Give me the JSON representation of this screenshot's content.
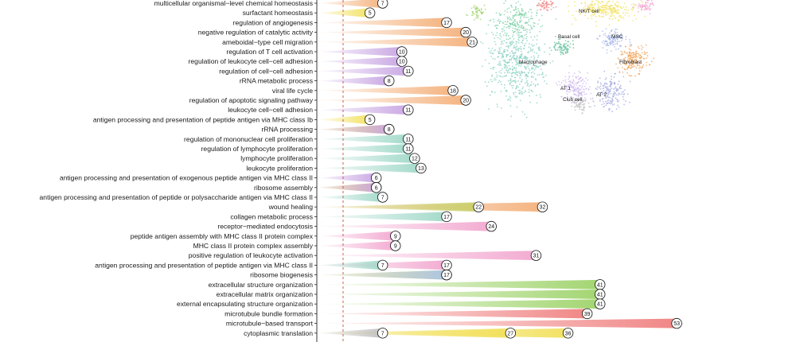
{
  "chart_data": {
    "type": "lollipop",
    "grid": false,
    "colors": {
      "red": "#f08080",
      "green": "#9ed36a",
      "pink": "#f2a7cf",
      "yellow": "#f2e05c",
      "teal": "#9fd8c8",
      "purple": "#c7a4e2",
      "orange": "#f4b07a",
      "blue": "#a9c4ec",
      "olive": "#c8cf6a",
      "gray": "#bfbfbf"
    },
    "rows": [
      {
        "term": "multicellular organismal−level chemical homeostasis",
        "points": [
          {
            "v": 7,
            "c": "orange"
          }
        ]
      },
      {
        "term": "surfactant homeostasis",
        "points": [
          {
            "v": 5,
            "c": "yellow"
          }
        ]
      },
      {
        "term": "regulation of angiogenesis",
        "points": [
          {
            "v": 17,
            "c": "orange"
          }
        ]
      },
      {
        "term": "negative regulation of catalytic activity",
        "points": [
          {
            "v": 20,
            "c": "orange"
          }
        ]
      },
      {
        "term": "ameboidal−type cell migration",
        "points": [
          {
            "v": 21,
            "c": "orange"
          }
        ]
      },
      {
        "term": "regulation of T cell activation",
        "points": [
          {
            "v": 10,
            "c": "purple"
          }
        ]
      },
      {
        "term": "regulation of leukocyte cell−cell adhesion",
        "points": [
          {
            "v": 10,
            "c": "purple"
          }
        ]
      },
      {
        "term": "regulation of cell−cell adhesion",
        "points": [
          {
            "v": 11,
            "c": "purple"
          }
        ]
      },
      {
        "term": "rRNA metabolic process",
        "points": [
          {
            "v": 8,
            "c": "purple"
          }
        ]
      },
      {
        "term": "viral life cycle",
        "points": [
          {
            "v": 18,
            "c": "orange"
          }
        ]
      },
      {
        "term": "regulation of apoptotic signaling pathway",
        "points": [
          {
            "v": 20,
            "c": "orange"
          }
        ]
      },
      {
        "term": "leukocyte cell−cell adhesion",
        "points": [
          {
            "v": 11,
            "c": "purple"
          }
        ]
      },
      {
        "term": "antigen processing and presentation of peptide antigen via MHC class Ib",
        "points": [
          {
            "v": 5,
            "c": "yellow"
          }
        ]
      },
      {
        "term": "rRNA processing",
        "points": [
          {
            "v": 8,
            "c": "yellow"
          },
          {
            "v": 8,
            "c": "purple"
          }
        ]
      },
      {
        "term": "regulation of mononuclear cell proliferation",
        "points": [
          {
            "v": 11,
            "c": "teal"
          }
        ]
      },
      {
        "term": "regulation of lymphocyte proliferation",
        "points": [
          {
            "v": 11,
            "c": "teal"
          }
        ]
      },
      {
        "term": "lymphocyte proliferation",
        "points": [
          {
            "v": 12,
            "c": "teal"
          }
        ]
      },
      {
        "term": "leukocyte proliferation",
        "points": [
          {
            "v": 13,
            "c": "teal"
          }
        ]
      },
      {
        "term": "antigen processing and presentation of exogenous peptide antigen via MHC class II",
        "points": [
          {
            "v": 6,
            "c": "purple"
          }
        ]
      },
      {
        "term": "ribosome assembly",
        "points": [
          {
            "v": 6,
            "c": "yellow"
          },
          {
            "v": 6,
            "c": "purple"
          }
        ]
      },
      {
        "term": "antigen processing and presentation of peptide or polysaccharide antigen via MHC class II",
        "points": [
          {
            "v": 7,
            "c": "teal"
          }
        ]
      },
      {
        "term": "wound healing",
        "points": [
          {
            "v": 22,
            "c": "olive"
          },
          {
            "v": 32,
            "c": "orange"
          }
        ]
      },
      {
        "term": "collagen metabolic process",
        "points": [
          {
            "v": 17,
            "c": "teal"
          }
        ]
      },
      {
        "term": "receptor−mediated endocytosis",
        "points": [
          {
            "v": 24,
            "c": "pink"
          }
        ]
      },
      {
        "term": "peptide antigen assembly with MHC class II protein complex",
        "points": [
          {
            "v": 9,
            "c": "pink"
          }
        ]
      },
      {
        "term": "MHC class II protein complex assembly",
        "points": [
          {
            "v": 9,
            "c": "pink"
          }
        ]
      },
      {
        "term": "positive regulation of leukocyte activation",
        "points": [
          {
            "v": 31,
            "c": "pink"
          }
        ]
      },
      {
        "term": "antigen processing and presentation of peptide antigen via MHC class II",
        "points": [
          {
            "v": 7,
            "c": "teal"
          },
          {
            "v": 17,
            "c": "pink"
          }
        ]
      },
      {
        "term": "ribosome biogenesis",
        "points": [
          {
            "v": 17,
            "c": "yellow"
          },
          {
            "v": 17,
            "c": "blue"
          }
        ]
      },
      {
        "term": "extracellular structure organization",
        "points": [
          {
            "v": 41,
            "c": "green"
          }
        ]
      },
      {
        "term": "extracellular matrix organization",
        "points": [
          {
            "v": 41,
            "c": "green"
          }
        ]
      },
      {
        "term": "external encapsulating structure organization",
        "points": [
          {
            "v": 41,
            "c": "green"
          }
        ]
      },
      {
        "term": "microtubule bundle formation",
        "points": [
          {
            "v": 39,
            "c": "red"
          }
        ]
      },
      {
        "term": "microtubule−based transport",
        "points": [
          {
            "v": 53,
            "c": "red"
          }
        ]
      },
      {
        "term": "cytoplasmic translation",
        "points": [
          {
            "v": 7,
            "c": "gray"
          },
          {
            "v": 27,
            "c": "yellow"
          },
          {
            "v": 36,
            "c": "yellow"
          }
        ]
      }
    ],
    "inset_umap": {
      "labels": [
        "NK/T cell",
        "Basal cell",
        "MSC",
        "Macrophage",
        "Fibroblast",
        "AT 1",
        "Club cell",
        "AT 2"
      ]
    }
  }
}
